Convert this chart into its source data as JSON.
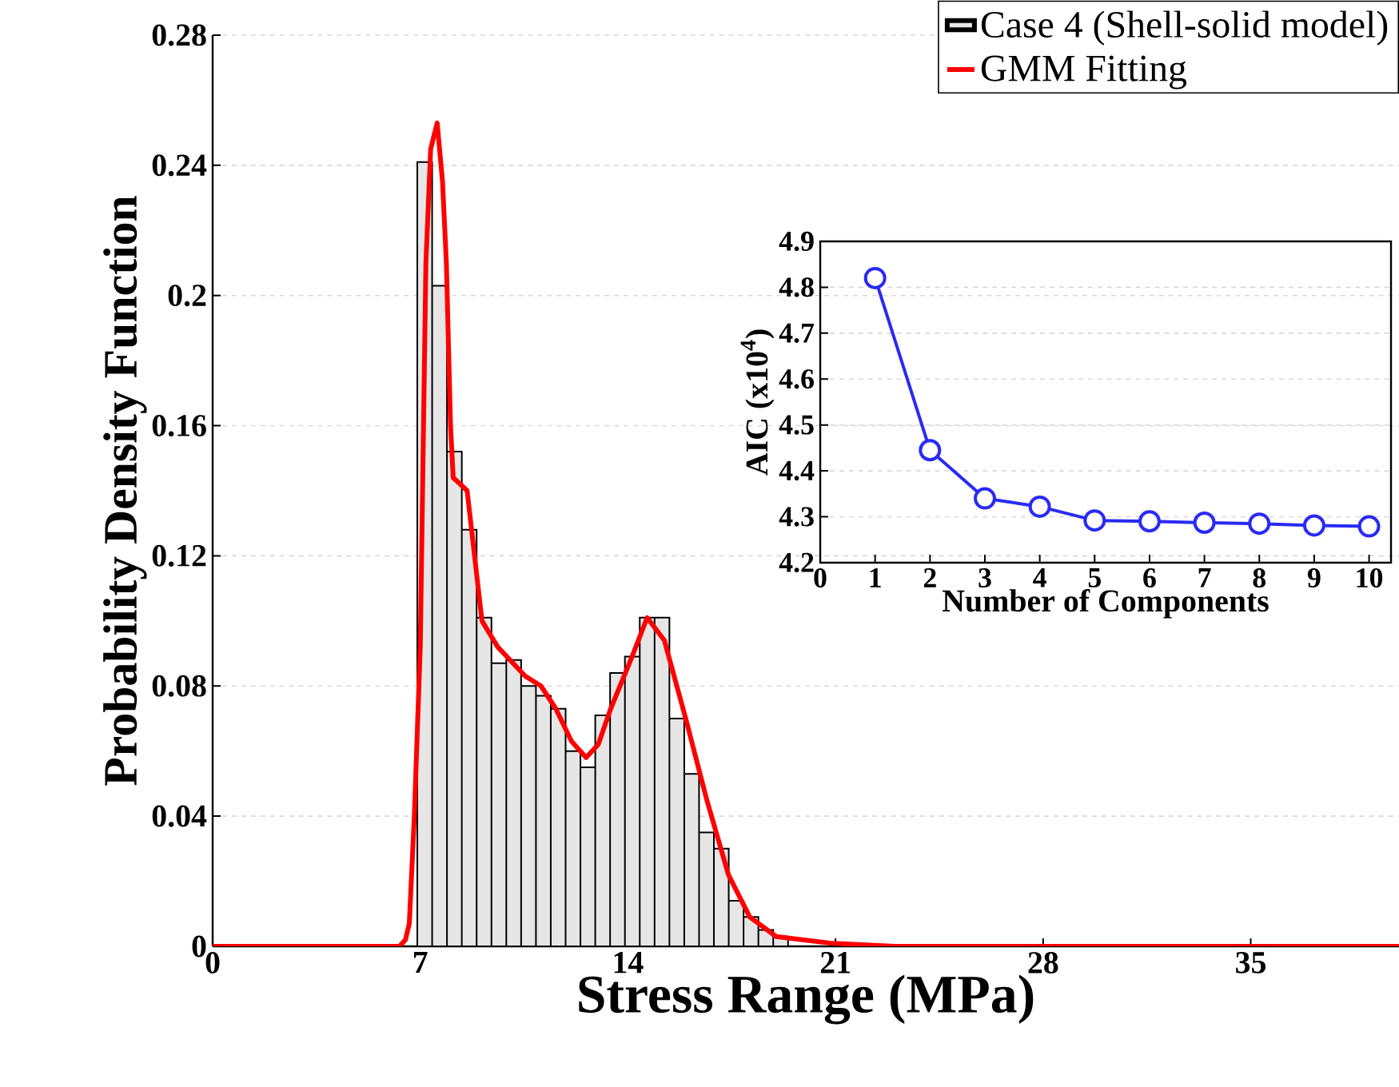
{
  "chart_data": [
    {
      "type": "histogram",
      "xlabel": "Stress Range (MPa)",
      "ylabel": "Probability Density Function",
      "xlim": [
        0,
        40
      ],
      "ylim": [
        0,
        0.28
      ],
      "xticks": [
        0,
        7,
        14,
        21,
        28,
        35
      ],
      "yticks": [
        0,
        0.04,
        0.08,
        0.12,
        0.16,
        0.2,
        0.24,
        0.28
      ],
      "grid": "y",
      "legend": "top right",
      "series": [
        {
          "name": "Case 4 (Shell-solid model)",
          "type": "histogram",
          "color": "#e6e6e6",
          "bins": [
            6.9,
            7.4,
            7.9,
            8.4,
            8.9,
            9.4,
            9.9,
            10.4,
            10.9,
            11.4,
            11.9,
            12.4,
            12.9,
            13.4,
            13.9,
            14.4,
            14.9,
            15.4,
            15.9,
            16.4,
            16.9,
            17.4,
            17.9,
            18.4,
            18.9,
            19.4
          ],
          "values": [
            0.241,
            0.203,
            0.152,
            0.128,
            0.101,
            0.087,
            0.088,
            0.08,
            0.077,
            0.073,
            0.06,
            0.055,
            0.071,
            0.084,
            0.089,
            0.101,
            0.101,
            0.07,
            0.053,
            0.035,
            0.03,
            0.014,
            0.009,
            0.005,
            0.003
          ]
        },
        {
          "name": "GMM Fitting",
          "type": "line",
          "color": "#ff0000",
          "marker": "none",
          "x": [
            0,
            6.3,
            6.5,
            6.63,
            6.8,
            7.0,
            7.19,
            7.35,
            7.57,
            7.75,
            7.88,
            8.02,
            8.11,
            8.35,
            8.58,
            9.08,
            9.61,
            10.54,
            11.07,
            11.57,
            12.1,
            12.59,
            13.0,
            13.42,
            14.14,
            14.65,
            15.23,
            15.95,
            16.66,
            17.39,
            18.11,
            19.0,
            20.8,
            23,
            40
          ],
          "values": [
            0,
            0,
            0.002,
            0.007,
            0.04,
            0.092,
            0.21,
            0.245,
            0.253,
            0.235,
            0.21,
            0.16,
            0.144,
            0.142,
            0.14,
            0.1,
            0.092,
            0.083,
            0.08,
            0.073,
            0.063,
            0.058,
            0.062,
            0.073,
            0.089,
            0.101,
            0.094,
            0.07,
            0.045,
            0.022,
            0.009,
            0.003,
            0.001,
            0,
            0
          ]
        }
      ]
    },
    {
      "type": "line",
      "xlabel": "Number of Components",
      "ylabel": "AIC (x10$^{4}$)",
      "xlim": [
        0,
        10.4
      ],
      "ylim": [
        4.2,
        4.9
      ],
      "xticks": [
        0,
        1,
        2,
        3,
        4,
        5,
        6,
        7,
        8,
        9,
        10
      ],
      "yticks": [
        4.2,
        4.3,
        4.4,
        4.5,
        4.6,
        4.7,
        4.8,
        4.9
      ],
      "grid": "y",
      "legend": false,
      "marker": "circle",
      "x": [
        1,
        2,
        3,
        4,
        5,
        6,
        7,
        8,
        9,
        10
      ],
      "series": [
        {
          "color": "#2a2af5",
          "values": [
            4.82,
            4.445,
            4.34,
            4.322,
            4.292,
            4.29,
            4.287,
            4.285,
            4.281,
            4.279
          ]
        }
      ]
    }
  ]
}
